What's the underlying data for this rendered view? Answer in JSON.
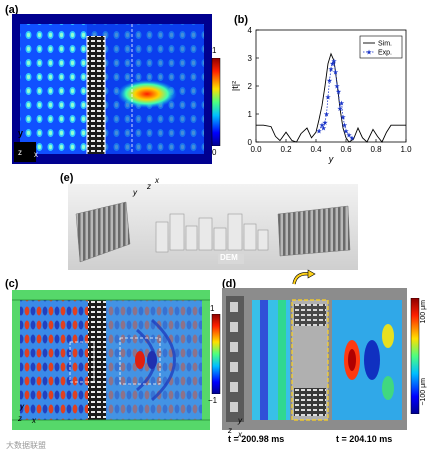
{
  "panels": {
    "a": {
      "label": "(a)",
      "colorbar": {
        "max": "1",
        "min": "0"
      },
      "axes": {
        "y": "y",
        "z": "z",
        "x": "x"
      }
    },
    "b": {
      "label": "(b)",
      "ylabel": "|t|²",
      "xlabel": "y",
      "legend": [
        "Sim.",
        "Exp."
      ]
    },
    "e": {
      "label": "(e)",
      "axes": {
        "x": "x",
        "y": "y",
        "z": "z"
      },
      "caption": "DEM"
    },
    "c": {
      "label": "(c)",
      "colorbar": {
        "max": "1",
        "min": "−1"
      },
      "axes": {
        "y": "y",
        "z": "z",
        "x": "x"
      }
    },
    "d": {
      "label": "(d)",
      "colorbar": {
        "max": "100 μm",
        "min": "−100 μm"
      },
      "axes": {
        "z": "z",
        "x": "x",
        "y": "y"
      },
      "time_left": "t = 200.98 ms",
      "time_right": "t = 204.10 ms"
    }
  },
  "watermark": "大数据联盟",
  "chart_data": {
    "type": "line",
    "title": "",
    "xlabel": "y",
    "ylabel": "|t|²",
    "xlim": [
      0.0,
      1.0
    ],
    "ylim": [
      0,
      4
    ],
    "xticks": [
      "0.0",
      "0.2",
      "0.4",
      "0.6",
      "0.8",
      "1.0"
    ],
    "yticks": [
      "0",
      "1",
      "2",
      "3",
      "4"
    ],
    "series": [
      {
        "name": "Sim.",
        "style": "solid",
        "color": "#000000",
        "x": [
          0.0,
          0.05,
          0.1,
          0.13,
          0.16,
          0.2,
          0.24,
          0.27,
          0.3,
          0.34,
          0.37,
          0.4,
          0.42,
          0.44,
          0.46,
          0.48,
          0.5,
          0.52,
          0.54,
          0.56,
          0.58,
          0.6,
          0.62,
          0.65,
          0.68,
          0.71,
          0.74,
          0.78,
          0.81,
          0.84,
          0.87,
          0.9,
          0.95,
          1.0
        ],
        "y": [
          0.6,
          0.6,
          0.55,
          0.2,
          0.05,
          0.35,
          0.05,
          0.0,
          0.3,
          0.5,
          0.15,
          0.35,
          0.8,
          1.3,
          2.0,
          2.8,
          3.15,
          2.9,
          2.1,
          1.2,
          0.5,
          0.15,
          0.0,
          0.1,
          0.5,
          0.15,
          0.0,
          0.45,
          0.2,
          0.0,
          0.35,
          0.6,
          0.6,
          0.6
        ]
      },
      {
        "name": "Exp.",
        "style": "dotted-star",
        "color": "#1a35c8",
        "x": [
          0.42,
          0.44,
          0.45,
          0.46,
          0.47,
          0.48,
          0.49,
          0.5,
          0.51,
          0.52,
          0.53,
          0.54,
          0.55,
          0.56,
          0.57,
          0.58,
          0.59,
          0.6,
          0.62,
          0.64
        ],
        "y": [
          0.4,
          0.6,
          0.5,
          0.7,
          1.0,
          1.6,
          2.2,
          2.6,
          2.8,
          2.9,
          2.5,
          2.0,
          1.8,
          1.2,
          1.4,
          0.9,
          0.6,
          0.4,
          0.25,
          0.15
        ]
      }
    ]
  }
}
